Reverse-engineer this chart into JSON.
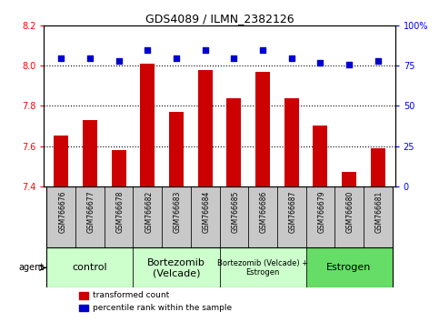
{
  "title": "GDS4089 / ILMN_2382126",
  "samples": [
    "GSM766676",
    "GSM766677",
    "GSM766678",
    "GSM766682",
    "GSM766683",
    "GSM766684",
    "GSM766685",
    "GSM766686",
    "GSM766687",
    "GSM766679",
    "GSM766680",
    "GSM766681"
  ],
  "red_values": [
    7.65,
    7.73,
    7.58,
    8.01,
    7.77,
    7.98,
    7.84,
    7.97,
    7.84,
    7.7,
    7.47,
    7.59
  ],
  "blue_values": [
    80,
    80,
    78,
    85,
    80,
    85,
    80,
    85,
    80,
    77,
    76,
    78
  ],
  "ylim_left": [
    7.4,
    8.2
  ],
  "ylim_right": [
    0,
    100
  ],
  "yticks_left": [
    7.4,
    7.6,
    7.8,
    8.0,
    8.2
  ],
  "yticks_right": [
    0,
    25,
    50,
    75,
    100
  ],
  "groups": [
    {
      "label": "control",
      "start": 0,
      "end": 3,
      "color": "#ccffcc",
      "fontsize": 8
    },
    {
      "label": "Bortezomib\n(Velcade)",
      "start": 3,
      "end": 6,
      "color": "#ccffcc",
      "fontsize": 8
    },
    {
      "label": "Bortezomib (Velcade) +\nEstrogen",
      "start": 6,
      "end": 9,
      "color": "#ccffcc",
      "fontsize": 6
    },
    {
      "label": "Estrogen",
      "start": 9,
      "end": 12,
      "color": "#66dd66",
      "fontsize": 8
    }
  ],
  "bar_color": "#cc0000",
  "dot_color": "#0000cc",
  "bar_width": 0.5,
  "sample_bg": "#c8c8c8",
  "legend_red": "transformed count",
  "legend_blue": "percentile rank within the sample",
  "agent_label": "agent",
  "grid_dotted_vals": [
    7.6,
    7.8,
    8.0
  ],
  "dot_size": 18
}
